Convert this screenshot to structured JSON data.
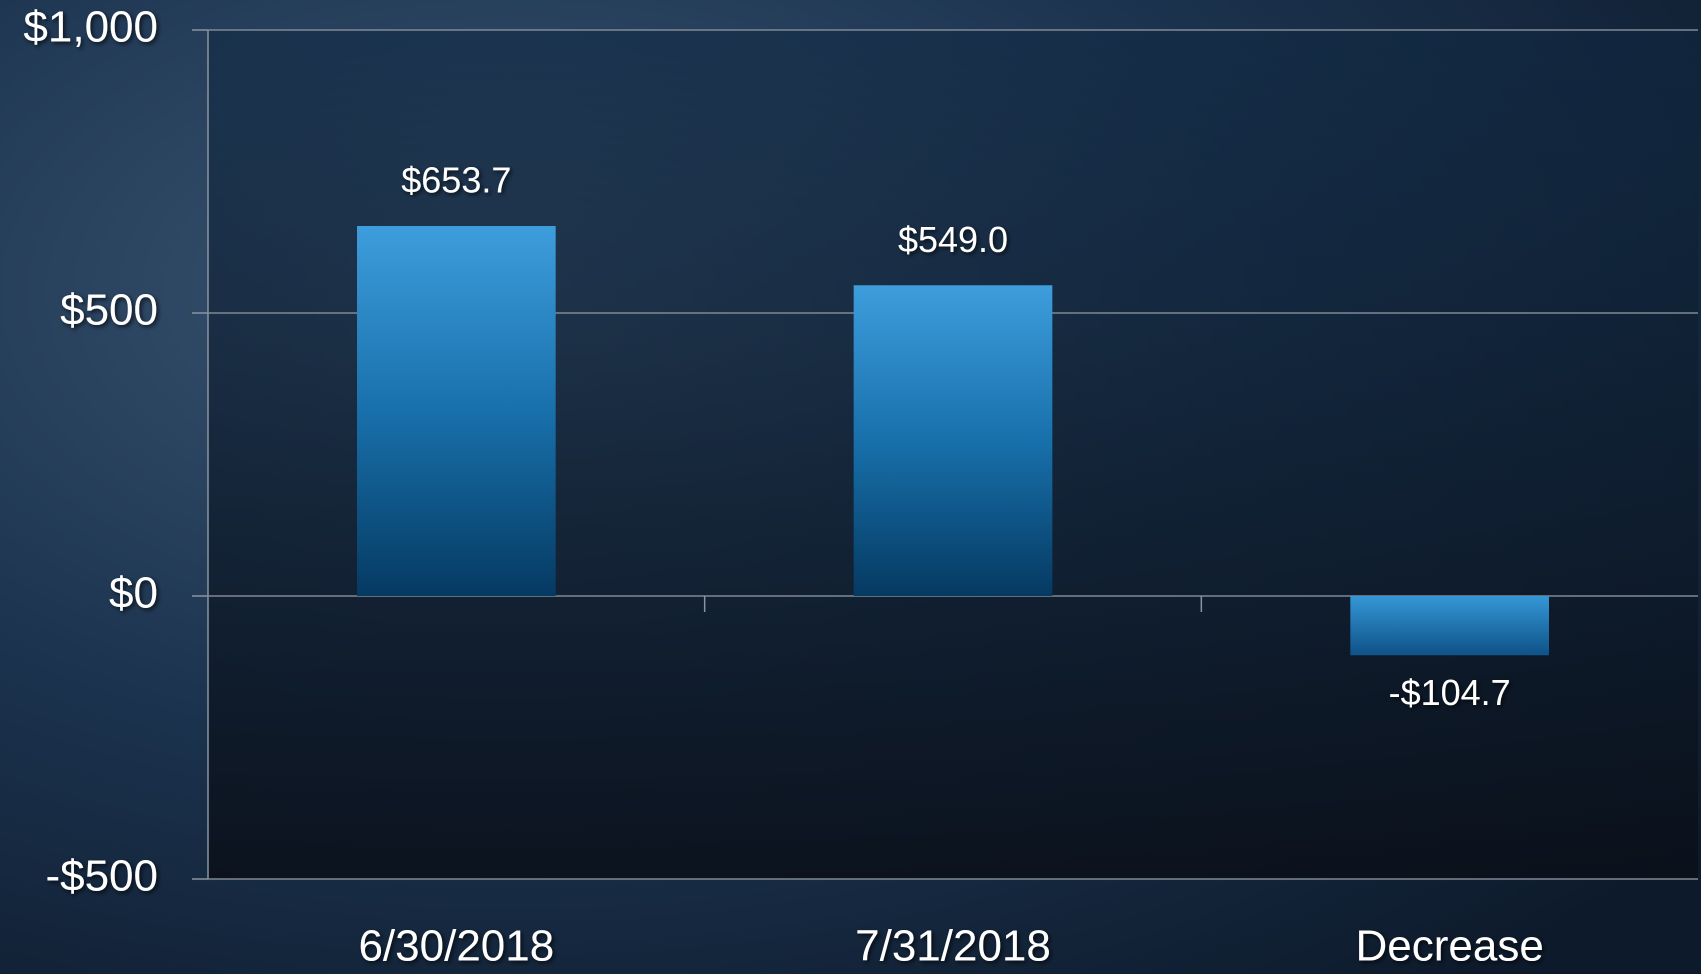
{
  "chart_data": {
    "type": "bar",
    "categories": [
      "6/30/2018",
      "7/31/2018",
      "Decrease"
    ],
    "values": [
      653.7,
      549.0,
      -104.7
    ],
    "value_labels": [
      "$653.7",
      "$549.0",
      "-$104.7"
    ],
    "color": "#2a86c6",
    "ylim": [
      -500,
      1000
    ],
    "yticks": [
      {
        "value": 1000,
        "label": "$1,000"
      },
      {
        "value": 500,
        "label": "$500"
      },
      {
        "value": 0,
        "label": "$0"
      },
      {
        "value": -500,
        "label": "-$500"
      }
    ],
    "grid": true
  }
}
